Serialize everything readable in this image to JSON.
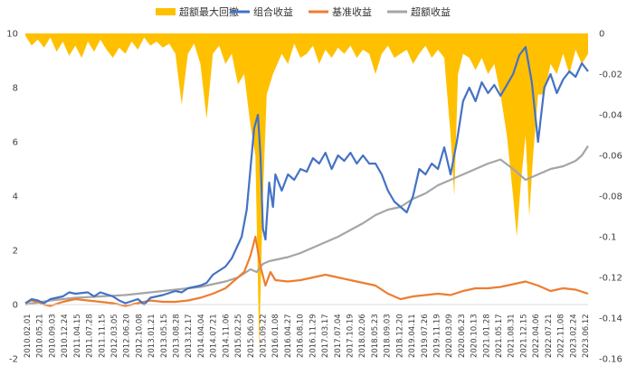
{
  "chart_data": {
    "type": "line",
    "legend_position": "top",
    "grid": false,
    "series": [
      {
        "name": "超额最大回撤",
        "type": "area",
        "axis": "right",
        "color": "#FFC000"
      },
      {
        "name": "组合收益",
        "type": "line",
        "axis": "left",
        "color": "#4472C4"
      },
      {
        "name": "基准收益",
        "type": "line",
        "axis": "left",
        "color": "#ED7D31"
      },
      {
        "name": "超额收益",
        "type": "line",
        "axis": "left",
        "color": "#A5A5A5"
      }
    ],
    "y_left": {
      "min": -2,
      "max": 10,
      "ticks": [
        "-2",
        "0",
        "2",
        "4",
        "6",
        "8",
        "10"
      ]
    },
    "y_right": {
      "min": -0.16,
      "max": 0,
      "ticks": [
        "-0.16",
        "-0.14",
        "-0.12",
        "-0.1",
        "-0.08",
        "-0.06",
        "-0.04",
        "-0.02",
        "0"
      ]
    },
    "x_ticks": [
      "2010.02.01",
      "2010.05.21",
      "2010.09.03",
      "2010.12.24",
      "2011.04.15",
      "2011.07.28",
      "2011.11.15",
      "2012.03.05",
      "2012.06.20",
      "2012.10.08",
      "2013.01.21",
      "2013.05.15",
      "2013.08.28",
      "2013.12.17",
      "2014.04.04",
      "2014.07.21",
      "2014.11.06",
      "2015.02.25",
      "2015.06.09",
      "2015.09.22",
      "2016.01.08",
      "2016.04.27",
      "2016.08.10",
      "2016.11.29",
      "2017.03.17",
      "2017.07.04",
      "2017.10.19",
      "2018.02.06",
      "2018.05.23",
      "2018.09.03",
      "2018.12.20",
      "2019.04.11",
      "2019.07.26",
      "2019.11.19",
      "2020.03.09",
      "2020.06.23",
      "2020.10.13",
      "2021.01.28",
      "2021.05.17",
      "2021.08.31",
      "2021.12.15",
      "2022.04.06",
      "2022.07.21",
      "2022.11.08",
      "2023.02.24",
      "2023.06.12"
    ],
    "x_range": [
      0,
      45
    ],
    "portfolio": [
      [
        0,
        0.05
      ],
      [
        0.5,
        0.2
      ],
      [
        1,
        0.15
      ],
      [
        1.5,
        0.05
      ],
      [
        2,
        0.2
      ],
      [
        3,
        0.3
      ],
      [
        3.5,
        0.45
      ],
      [
        4,
        0.4
      ],
      [
        5,
        0.45
      ],
      [
        5.5,
        0.3
      ],
      [
        6,
        0.45
      ],
      [
        7,
        0.3
      ],
      [
        7.5,
        0.15
      ],
      [
        8,
        0.05
      ],
      [
        9,
        0.2
      ],
      [
        9.5,
        0.0
      ],
      [
        10,
        0.25
      ],
      [
        11,
        0.35
      ],
      [
        12,
        0.5
      ],
      [
        12.5,
        0.45
      ],
      [
        13,
        0.6
      ],
      [
        14,
        0.7
      ],
      [
        14.5,
        0.8
      ],
      [
        15,
        1.1
      ],
      [
        16,
        1.4
      ],
      [
        16.5,
        1.7
      ],
      [
        17,
        2.2
      ],
      [
        17.3,
        2.5
      ],
      [
        17.7,
        3.5
      ],
      [
        18,
        5.0
      ],
      [
        18.3,
        6.5
      ],
      [
        18.6,
        7.0
      ],
      [
        18.8,
        5.5
      ],
      [
        19,
        2.8
      ],
      [
        19.2,
        2.4
      ],
      [
        19.5,
        4.5
      ],
      [
        19.8,
        3.6
      ],
      [
        20,
        4.8
      ],
      [
        20.5,
        4.2
      ],
      [
        21,
        4.8
      ],
      [
        21.5,
        4.6
      ],
      [
        22,
        5.0
      ],
      [
        22.5,
        4.9
      ],
      [
        23,
        5.4
      ],
      [
        23.5,
        5.2
      ],
      [
        24,
        5.6
      ],
      [
        24.5,
        5.0
      ],
      [
        25,
        5.5
      ],
      [
        25.5,
        5.3
      ],
      [
        26,
        5.6
      ],
      [
        26.5,
        5.2
      ],
      [
        27,
        5.5
      ],
      [
        27.5,
        5.2
      ],
      [
        28,
        5.2
      ],
      [
        28.5,
        4.8
      ],
      [
        29,
        4.2
      ],
      [
        29.5,
        3.8
      ],
      [
        30,
        3.6
      ],
      [
        30.5,
        3.4
      ],
      [
        31,
        4.0
      ],
      [
        31.5,
        5.0
      ],
      [
        32,
        4.8
      ],
      [
        32.5,
        5.2
      ],
      [
        33,
        5.0
      ],
      [
        33.5,
        5.8
      ],
      [
        34,
        4.8
      ],
      [
        34.5,
        6.0
      ],
      [
        35,
        7.5
      ],
      [
        35.5,
        8.0
      ],
      [
        36,
        7.5
      ],
      [
        36.5,
        8.2
      ],
      [
        37,
        7.8
      ],
      [
        37.5,
        8.1
      ],
      [
        38,
        7.7
      ],
      [
        38.5,
        8.1
      ],
      [
        39,
        8.5
      ],
      [
        39.5,
        9.2
      ],
      [
        40,
        9.5
      ],
      [
        40.5,
        8.2
      ],
      [
        41,
        6.0
      ],
      [
        41.5,
        8.0
      ],
      [
        42,
        8.5
      ],
      [
        42.5,
        7.8
      ],
      [
        43,
        8.3
      ],
      [
        43.5,
        8.6
      ],
      [
        44,
        8.4
      ],
      [
        44.5,
        8.9
      ],
      [
        45,
        8.6
      ]
    ],
    "benchmark": [
      [
        0,
        0.05
      ],
      [
        0.5,
        0.15
      ],
      [
        1,
        0.1
      ],
      [
        1.5,
        0.0
      ],
      [
        2,
        -0.05
      ],
      [
        3,
        0.1
      ],
      [
        4,
        0.2
      ],
      [
        5,
        0.15
      ],
      [
        6,
        0.1
      ],
      [
        7,
        0.05
      ],
      [
        8,
        -0.05
      ],
      [
        9,
        0.05
      ],
      [
        10,
        0.15
      ],
      [
        11,
        0.1
      ],
      [
        12,
        0.1
      ],
      [
        13,
        0.15
      ],
      [
        14,
        0.25
      ],
      [
        15,
        0.4
      ],
      [
        16,
        0.6
      ],
      [
        17,
        1.0
      ],
      [
        17.5,
        1.2
      ],
      [
        18,
        1.8
      ],
      [
        18.4,
        2.5
      ],
      [
        18.8,
        1.4
      ],
      [
        19.2,
        0.7
      ],
      [
        19.6,
        1.2
      ],
      [
        20,
        0.9
      ],
      [
        21,
        0.85
      ],
      [
        22,
        0.9
      ],
      [
        23,
        1.0
      ],
      [
        24,
        1.1
      ],
      [
        25,
        1.0
      ],
      [
        26,
        0.9
      ],
      [
        27,
        0.8
      ],
      [
        28,
        0.7
      ],
      [
        29,
        0.4
      ],
      [
        30,
        0.2
      ],
      [
        31,
        0.3
      ],
      [
        32,
        0.35
      ],
      [
        33,
        0.4
      ],
      [
        34,
        0.35
      ],
      [
        35,
        0.5
      ],
      [
        36,
        0.6
      ],
      [
        37,
        0.6
      ],
      [
        38,
        0.65
      ],
      [
        39,
        0.75
      ],
      [
        40,
        0.85
      ],
      [
        41,
        0.7
      ],
      [
        42,
        0.5
      ],
      [
        43,
        0.6
      ],
      [
        44,
        0.55
      ],
      [
        45,
        0.4
      ]
    ],
    "excess": [
      [
        0,
        0.0
      ],
      [
        2,
        0.15
      ],
      [
        4,
        0.25
      ],
      [
        6,
        0.3
      ],
      [
        8,
        0.35
      ],
      [
        10,
        0.45
      ],
      [
        12,
        0.55
      ],
      [
        14,
        0.65
      ],
      [
        16,
        0.85
      ],
      [
        17,
        1.0
      ],
      [
        18,
        1.3
      ],
      [
        18.5,
        1.2
      ],
      [
        19,
        1.5
      ],
      [
        19.5,
        1.6
      ],
      [
        20,
        1.65
      ],
      [
        21,
        1.75
      ],
      [
        22,
        1.9
      ],
      [
        23,
        2.1
      ],
      [
        24,
        2.3
      ],
      [
        25,
        2.5
      ],
      [
        26,
        2.75
      ],
      [
        27,
        3.0
      ],
      [
        28,
        3.3
      ],
      [
        29,
        3.5
      ],
      [
        30,
        3.6
      ],
      [
        31,
        3.9
      ],
      [
        32,
        4.1
      ],
      [
        33,
        4.4
      ],
      [
        34,
        4.6
      ],
      [
        35,
        4.8
      ],
      [
        36,
        5.0
      ],
      [
        37,
        5.2
      ],
      [
        38,
        5.35
      ],
      [
        39,
        5.0
      ],
      [
        40,
        4.6
      ],
      [
        41,
        4.8
      ],
      [
        42,
        5.0
      ],
      [
        43,
        5.1
      ],
      [
        44,
        5.3
      ],
      [
        44.5,
        5.5
      ],
      [
        45,
        5.85
      ]
    ],
    "drawdown": [
      [
        0,
        -0.001
      ],
      [
        0.5,
        -0.006
      ],
      [
        1,
        -0.003
      ],
      [
        1.5,
        -0.007
      ],
      [
        2,
        -0.002
      ],
      [
        2.5,
        -0.009
      ],
      [
        3,
        -0.004
      ],
      [
        3.5,
        -0.011
      ],
      [
        4,
        -0.006
      ],
      [
        4.5,
        -0.012
      ],
      [
        5,
        -0.004
      ],
      [
        5.5,
        -0.009
      ],
      [
        6,
        -0.003
      ],
      [
        6.5,
        -0.008
      ],
      [
        7,
        -0.012
      ],
      [
        7.5,
        -0.007
      ],
      [
        8,
        -0.01
      ],
      [
        8.5,
        -0.004
      ],
      [
        9,
        -0.008
      ],
      [
        9.5,
        -0.002
      ],
      [
        10,
        -0.006
      ],
      [
        10.5,
        -0.004
      ],
      [
        11,
        -0.007
      ],
      [
        11.5,
        -0.005
      ],
      [
        12,
        -0.01
      ],
      [
        12.5,
        -0.035
      ],
      [
        13,
        -0.01
      ],
      [
        13.5,
        -0.005
      ],
      [
        14,
        -0.015
      ],
      [
        14.5,
        -0.042
      ],
      [
        15,
        -0.01
      ],
      [
        15.5,
        -0.006
      ],
      [
        16,
        -0.015
      ],
      [
        16.5,
        -0.01
      ],
      [
        17,
        -0.025
      ],
      [
        17.5,
        -0.02
      ],
      [
        18,
        -0.045
      ],
      [
        18.4,
        -0.06
      ],
      [
        18.7,
        -0.155
      ],
      [
        19,
        -0.08
      ],
      [
        19.3,
        -0.03
      ],
      [
        19.8,
        -0.02
      ],
      [
        20.5,
        -0.01
      ],
      [
        21,
        -0.015
      ],
      [
        21.5,
        -0.005
      ],
      [
        22,
        -0.012
      ],
      [
        22.5,
        -0.01
      ],
      [
        23,
        -0.006
      ],
      [
        23.5,
        -0.015
      ],
      [
        24,
        -0.008
      ],
      [
        24.5,
        -0.012
      ],
      [
        25,
        -0.007
      ],
      [
        25.5,
        -0.01
      ],
      [
        26,
        -0.006
      ],
      [
        26.5,
        -0.012
      ],
      [
        27,
        -0.008
      ],
      [
        27.5,
        -0.01
      ],
      [
        28,
        -0.02
      ],
      [
        28.5,
        -0.01
      ],
      [
        29,
        -0.006
      ],
      [
        29.5,
        -0.012
      ],
      [
        30,
        -0.01
      ],
      [
        30.5,
        -0.008
      ],
      [
        31,
        -0.015
      ],
      [
        31.5,
        -0.01
      ],
      [
        32,
        -0.006
      ],
      [
        32.5,
        -0.012
      ],
      [
        33,
        -0.008
      ],
      [
        33.5,
        -0.012
      ],
      [
        34,
        -0.05
      ],
      [
        34.3,
        -0.08
      ],
      [
        34.6,
        -0.02
      ],
      [
        35,
        -0.01
      ],
      [
        35.5,
        -0.012
      ],
      [
        36,
        -0.018
      ],
      [
        36.5,
        -0.012
      ],
      [
        37,
        -0.02
      ],
      [
        37.5,
        -0.015
      ],
      [
        38,
        -0.03
      ],
      [
        38.5,
        -0.05
      ],
      [
        39,
        -0.08
      ],
      [
        39.3,
        -0.1
      ],
      [
        39.6,
        -0.075
      ],
      [
        40,
        -0.05
      ],
      [
        40.3,
        -0.09
      ],
      [
        40.6,
        -0.06
      ],
      [
        41,
        -0.03
      ],
      [
        41.5,
        -0.03
      ],
      [
        42,
        -0.015
      ],
      [
        42.5,
        -0.02
      ],
      [
        43,
        -0.01
      ],
      [
        43.5,
        -0.02
      ],
      [
        44,
        -0.008
      ],
      [
        44.5,
        -0.015
      ],
      [
        45,
        -0.01
      ]
    ]
  }
}
